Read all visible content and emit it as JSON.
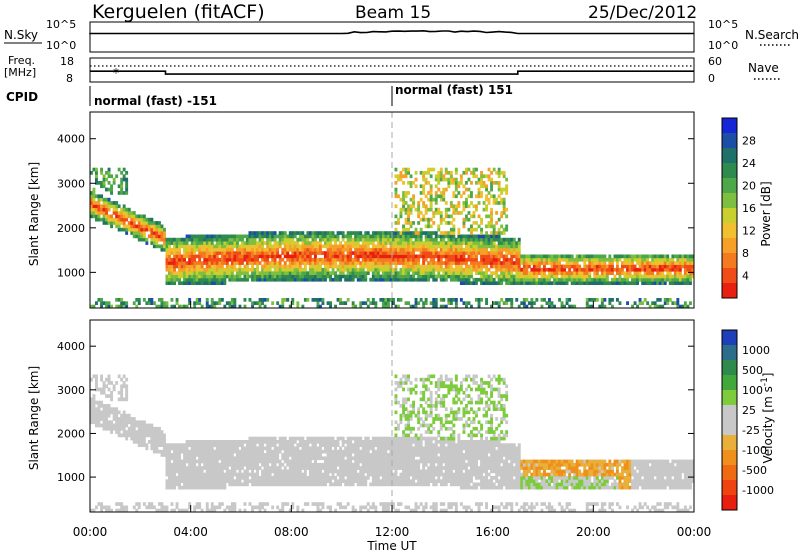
{
  "header": {
    "station": "Kerguelen (fitACF)",
    "beam": "Beam 15",
    "date": "25/Dec/2012"
  },
  "top_panels": {
    "nsky_label": "N.Sky",
    "nsky_ticks": [
      "10^5",
      "10^0"
    ],
    "nsky_right_ticks": [
      "10^5",
      "10^0"
    ],
    "nsearch_label": "N.Search",
    "freq_label": [
      "Freq.",
      "[MHz]"
    ],
    "freq_ticks": [
      "18",
      "8"
    ],
    "nave_ticks": [
      "60",
      "0"
    ],
    "nave_label": "Nave",
    "cpid_label": "CPID",
    "cpid_modes": [
      {
        "name": "normal (fast) -151",
        "start_hour": 0,
        "end_hour": 12
      },
      {
        "name": "normal (fast) 151",
        "start_hour": 12,
        "end_hour": 24
      }
    ],
    "frequency_segments_mhz": [
      {
        "start_hour": 0,
        "end_hour": 3,
        "value": 12.5
      },
      {
        "start_hour": 3,
        "end_hour": 17,
        "value": 11.3
      },
      {
        "start_hour": 17,
        "end_hour": 24,
        "value": 12.5
      }
    ]
  },
  "x_axis": {
    "ticks": [
      "00:00",
      "04:00",
      "08:00",
      "12:00",
      "16:00",
      "20:00",
      "00:00"
    ],
    "title": "Time UT"
  },
  "power_colorbar": {
    "title": "Power [dB]",
    "ticks": [
      "28",
      "24",
      "20",
      "16",
      "12",
      "8",
      "4"
    ],
    "colors": [
      "#1426d6",
      "#1c4ea8",
      "#1f6f6a",
      "#2f8a4e",
      "#4ea84a",
      "#7fbf3f",
      "#c8cf2e",
      "#f0c030",
      "#f6a028",
      "#f47a20",
      "#f04c18",
      "#e82010"
    ]
  },
  "velocity_colorbar": {
    "title": "Velocity [m s^-1]",
    "ticks": [
      "1000",
      "500",
      "100",
      "25",
      "-25",
      "-100",
      "-500",
      "-1000"
    ],
    "colors": [
      "#1d3fb8",
      "#2d6d8c",
      "#2f8a4e",
      "#43a83b",
      "#7ccc3c",
      "#c8c8c8",
      "#c8c8c8",
      "#e8b03a",
      "#f0901c",
      "#f06a14",
      "#ef4410",
      "#e81e10"
    ]
  },
  "chart_data": [
    {
      "type": "heatmap",
      "title": "Power [dB]",
      "xlabel": "Time UT",
      "ylabel": "Slant Range [km]",
      "xlim": [
        0,
        24
      ],
      "ylim": [
        200,
        4600
      ],
      "yticks": [
        1000,
        2000,
        3000,
        4000
      ],
      "zlim": [
        0,
        30
      ],
      "approximate_features": [
        {
          "feature": "descending band",
          "start_hour": 0,
          "end_hour": 3,
          "range_km_start": 2500,
          "range_km_end": 1700,
          "power_db_peak": 26
        },
        {
          "feature": "main band",
          "start_hour": 3,
          "end_hour": 17,
          "range_km_center": 1200,
          "power_db_peak": 28
        },
        {
          "feature": "upper echoes",
          "start_hour": 12,
          "end_hour": 16.5,
          "range_km_center": 2500,
          "power_db_peak": 20
        },
        {
          "feature": "late band",
          "start_hour": 17,
          "end_hour": 24,
          "range_km_center": 1000,
          "power_db_peak": 28
        }
      ]
    },
    {
      "type": "heatmap",
      "title": "Velocity [m s^-1]",
      "xlabel": "Time UT",
      "ylabel": "Slant Range [km]",
      "xlim": [
        0,
        24
      ],
      "ylim": [
        200,
        4600
      ],
      "yticks": [
        1000,
        2000,
        3000,
        4000
      ],
      "zlim": [
        -1000,
        1000
      ],
      "approximate_features": [
        {
          "feature": "ground scatter band",
          "start_hour": 0,
          "end_hour": 17,
          "range_km_center": 1400,
          "velocity_ms": 0
        },
        {
          "feature": "positive velocity echoes",
          "start_hour": 12,
          "end_hour": 16.5,
          "range_km_center": 2600,
          "velocity_ms": 150
        },
        {
          "feature": "negative velocity echoes",
          "start_hour": 17,
          "end_hour": 21.5,
          "range_km_center": 1100,
          "velocity_ms": -300
        }
      ]
    }
  ]
}
